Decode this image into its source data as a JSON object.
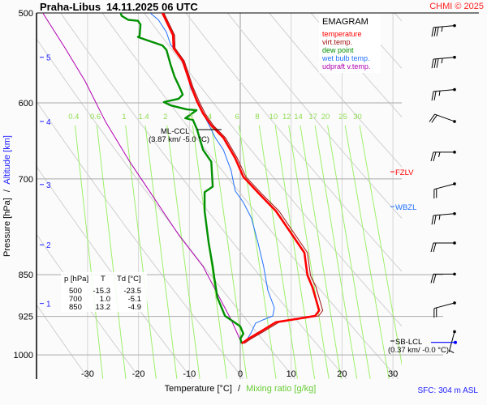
{
  "header": {
    "station": "Praha-Libus",
    "datetime": "14.11.2025 06 UTC",
    "copyright": "CHMI © 2025"
  },
  "legend": {
    "title": "EMAGRAM",
    "items": [
      {
        "label": "temperature",
        "color": "#ff0000"
      },
      {
        "label": "virt.temp.",
        "color": "#a01010"
      },
      {
        "label": "dew point",
        "color": "#009000"
      },
      {
        "label": "wet bulb temp.",
        "color": "#2070ff"
      },
      {
        "label": "udpraft v.temp.",
        "color": "#b000b0"
      }
    ]
  },
  "table": {
    "headers": [
      "p [hPa]",
      "T",
      "Td [°C]"
    ],
    "rows": [
      [
        "500",
        "-15.3",
        "-23.5"
      ],
      [
        "700",
        "1.0",
        "-5.1"
      ],
      [
        "850",
        "13.2",
        "-4.9"
      ]
    ]
  },
  "annotations": {
    "ml_ccl": {
      "label": "ML-CCL",
      "detail": "(3.87 km/ -5.0 °C)",
      "p": 628
    },
    "sb_lcl": {
      "label": "SB-LCL",
      "detail": "(0.37 km/ -0.0 °C)",
      "p": 957
    },
    "fzlv": {
      "label": "FZLV",
      "p": 691,
      "color": "#ff0000"
    },
    "wbzl": {
      "label": "WBZL",
      "p": 746,
      "color": "#2070ff"
    }
  },
  "footer": {
    "xlabel_temp": "Temperature [°C]",
    "xlabel_sep": "/",
    "xlabel_mix": "Mixing ratio [g/kg]",
    "sfc": "SFC: 304 m ASL"
  },
  "yaxis": {
    "label_pressure": "Pressure [hPa]",
    "label_sep": "/",
    "label_alt": "Altitude [km]"
  },
  "chart_data": {
    "type": "line",
    "subtype": "emagram",
    "xlabel": "Temperature [°C] / Mixing ratio [g/kg]",
    "ylabel": "Pressure [hPa] / Altitude [km]",
    "xlim": [
      -40,
      32
    ],
    "ylim": [
      1050,
      500
    ],
    "yscale": "log",
    "grid": true,
    "x_ticks": [
      -30,
      -20,
      -10,
      0,
      10,
      20,
      30
    ],
    "p_ticks": [
      500,
      600,
      700,
      850,
      925,
      1000
    ],
    "alt_ticks": [
      {
        "km": "5",
        "p": 547
      },
      {
        "km": "4",
        "p": 623
      },
      {
        "km": "3",
        "p": 708
      },
      {
        "km": "2",
        "p": 800
      },
      {
        "km": "1",
        "p": 901
      }
    ],
    "mixing_ratio_labels": [
      "0.4",
      "0.6",
      "1",
      "1.4",
      "2",
      "3",
      "4",
      "6",
      "8",
      "10",
      "12",
      "14",
      "17",
      "20",
      "25",
      "30"
    ],
    "series": [
      {
        "name": "temperature",
        "color": "#ff0000",
        "points": [
          [
            -15.3,
            500
          ],
          [
            -13.2,
            523
          ],
          [
            -13.1,
            537
          ],
          [
            -11.3,
            551
          ],
          [
            -10.5,
            565
          ],
          [
            -9.6,
            581
          ],
          [
            -8.5,
            598
          ],
          [
            -7.3,
            613
          ],
          [
            -5.7,
            628
          ],
          [
            -3.3,
            644
          ],
          [
            -1.0,
            671
          ],
          [
            0.6,
            697
          ],
          [
            3.8,
            722
          ],
          [
            7.0,
            747
          ],
          [
            10.2,
            784
          ],
          [
            12.6,
            813
          ],
          [
            13.2,
            851
          ],
          [
            14.2,
            872
          ],
          [
            15.5,
            914
          ],
          [
            14.7,
            924
          ],
          [
            10.2,
            931
          ],
          [
            7.0,
            936
          ],
          [
            3.8,
            955
          ],
          [
            1.6,
            968
          ],
          [
            0.3,
            977
          ]
        ]
      },
      {
        "name": "virt.temp.",
        "color": "#a01010",
        "points": [
          [
            -15.0,
            500
          ],
          [
            -12.9,
            523
          ],
          [
            -12.8,
            537
          ],
          [
            -11.0,
            551
          ],
          [
            -10.2,
            565
          ],
          [
            -9.3,
            581
          ],
          [
            -8.1,
            598
          ],
          [
            -6.9,
            613
          ],
          [
            -5.3,
            628
          ],
          [
            -2.9,
            644
          ],
          [
            -0.6,
            671
          ],
          [
            1.1,
            697
          ],
          [
            4.3,
            722
          ],
          [
            7.6,
            747
          ],
          [
            10.8,
            784
          ],
          [
            13.2,
            813
          ],
          [
            13.8,
            851
          ],
          [
            14.9,
            872
          ],
          [
            16.2,
            914
          ],
          [
            15.4,
            924
          ],
          [
            10.9,
            931
          ],
          [
            7.6,
            936
          ],
          [
            4.4,
            955
          ],
          [
            2.1,
            968
          ],
          [
            0.8,
            977
          ]
        ]
      },
      {
        "name": "dew point",
        "color": "#009000",
        "points": [
          [
            -23.5,
            500
          ],
          [
            -23.3,
            503
          ],
          [
            -22.0,
            507
          ],
          [
            -20.1,
            508
          ],
          [
            -19.6,
            512
          ],
          [
            -19.8,
            524
          ],
          [
            -20.1,
            525
          ],
          [
            -18.5,
            528
          ],
          [
            -15.3,
            534
          ],
          [
            -14.5,
            539
          ],
          [
            -13.7,
            555
          ],
          [
            -12.9,
            569
          ],
          [
            -11.8,
            583
          ],
          [
            -11.3,
            590
          ],
          [
            -12.1,
            595
          ],
          [
            -15.0,
            599
          ],
          [
            -13.7,
            603
          ],
          [
            -10.5,
            608
          ],
          [
            -8.6,
            609
          ],
          [
            -10.8,
            619
          ],
          [
            -9.3,
            621
          ],
          [
            -8.5,
            633
          ],
          [
            -7.3,
            660
          ],
          [
            -5.7,
            676
          ],
          [
            -5.4,
            711
          ],
          [
            -7.0,
            719
          ],
          [
            -7.0,
            747
          ],
          [
            -6.2,
            797
          ],
          [
            -5.4,
            836
          ],
          [
            -5.1,
            855
          ],
          [
            -4.5,
            890
          ],
          [
            -3.0,
            924
          ],
          [
            -1.0,
            937
          ],
          [
            0.0,
            944
          ],
          [
            0.6,
            958
          ],
          [
            0.0,
            968
          ],
          [
            0.3,
            977
          ]
        ]
      },
      {
        "name": "wet bulb temp.",
        "color": "#2070ff",
        "points": [
          [
            -17.7,
            500
          ],
          [
            -16.1,
            507
          ],
          [
            -14.5,
            520
          ],
          [
            -13.7,
            533
          ],
          [
            -11.8,
            546
          ],
          [
            -10.5,
            565
          ],
          [
            -9.7,
            583
          ],
          [
            -8.1,
            601
          ],
          [
            -7.3,
            613
          ],
          [
            -6.1,
            628
          ],
          [
            -4.9,
            644
          ],
          [
            -3.3,
            660
          ],
          [
            -1.8,
            688
          ],
          [
            -1.0,
            717
          ],
          [
            0.6,
            734
          ],
          [
            2.2,
            758
          ],
          [
            3.5,
            797
          ],
          [
            4.6,
            836
          ],
          [
            5.4,
            877
          ],
          [
            6.7,
            909
          ],
          [
            6.4,
            924
          ],
          [
            4.6,
            931
          ],
          [
            3.0,
            938
          ],
          [
            2.2,
            955
          ],
          [
            1.4,
            968
          ],
          [
            0.3,
            977
          ]
        ]
      },
      {
        "name": "udpraft v.temp.",
        "color": "#b000b0",
        "points": [
          [
            -38.8,
            500
          ],
          [
            -34.4,
            537
          ],
          [
            -30.5,
            574
          ],
          [
            -26.5,
            623
          ],
          [
            -21.7,
            676
          ],
          [
            -16.9,
            728
          ],
          [
            -12.1,
            784
          ],
          [
            -7.3,
            836
          ],
          [
            -4.1,
            890
          ],
          [
            -1.8,
            931
          ],
          [
            0.3,
            977
          ]
        ]
      }
    ],
    "wind_barbs": [
      {
        "p": 513,
        "dir_deg": 265,
        "speed_kt": 35
      },
      {
        "p": 547,
        "dir_deg": 265,
        "speed_kt": 35
      },
      {
        "p": 584,
        "dir_deg": 265,
        "speed_kt": 25
      },
      {
        "p": 623,
        "dir_deg": 290,
        "speed_kt": 20
      },
      {
        "p": 663,
        "dir_deg": 270,
        "speed_kt": 25
      },
      {
        "p": 707,
        "dir_deg": 255,
        "speed_kt": 20
      },
      {
        "p": 751,
        "dir_deg": 265,
        "speed_kt": 25
      },
      {
        "p": 797,
        "dir_deg": 270,
        "speed_kt": 20
      },
      {
        "p": 849,
        "dir_deg": 270,
        "speed_kt": 20
      },
      {
        "p": 900,
        "dir_deg": 255,
        "speed_kt": 20
      },
      {
        "p": 954,
        "dir_deg": 195,
        "speed_kt": 5
      }
    ]
  }
}
